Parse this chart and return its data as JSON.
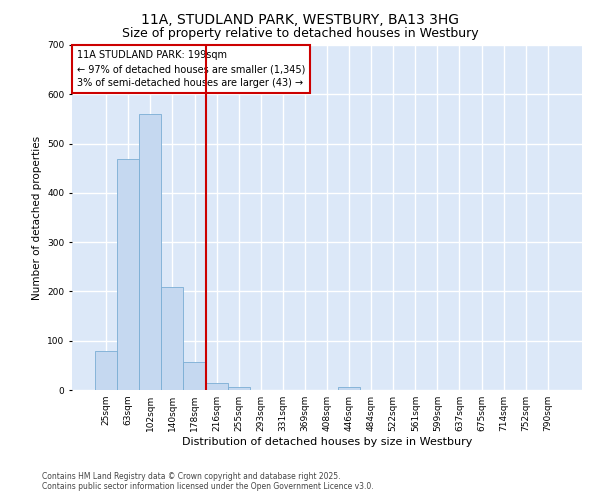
{
  "title": "11A, STUDLAND PARK, WESTBURY, BA13 3HG",
  "subtitle": "Size of property relative to detached houses in Westbury",
  "xlabel": "Distribution of detached houses by size in Westbury",
  "ylabel": "Number of detached properties",
  "categories": [
    "25sqm",
    "63sqm",
    "102sqm",
    "140sqm",
    "178sqm",
    "216sqm",
    "255sqm",
    "293sqm",
    "331sqm",
    "369sqm",
    "408sqm",
    "446sqm",
    "484sqm",
    "522sqm",
    "561sqm",
    "599sqm",
    "637sqm",
    "675sqm",
    "714sqm",
    "752sqm",
    "790sqm"
  ],
  "values": [
    80,
    468,
    560,
    208,
    57,
    15,
    7,
    1,
    1,
    0,
    0,
    7,
    0,
    0,
    0,
    0,
    0,
    0,
    0,
    0,
    0
  ],
  "bar_color": "#c5d8f0",
  "bar_edge_color": "#7aadd4",
  "vline_x_idx": 4.5,
  "vline_color": "#cc0000",
  "ylim": [
    0,
    700
  ],
  "yticks": [
    0,
    100,
    200,
    300,
    400,
    500,
    600,
    700
  ],
  "annotation_title": "11A STUDLAND PARK: 199sqm",
  "annotation_line1": "← 97% of detached houses are smaller (1,345)",
  "annotation_line2": "3% of semi-detached houses are larger (43) →",
  "annotation_box_color": "#cc0000",
  "footer1": "Contains HM Land Registry data © Crown copyright and database right 2025.",
  "footer2": "Contains public sector information licensed under the Open Government Licence v3.0.",
  "fig_bg_color": "#ffffff",
  "plot_bg_color": "#dce8f8",
  "grid_color": "#ffffff",
  "title_fontsize": 10,
  "subtitle_fontsize": 9,
  "xlabel_fontsize": 8,
  "ylabel_fontsize": 7.5,
  "tick_fontsize": 6.5,
  "footer_fontsize": 5.5,
  "ann_fontsize": 7
}
